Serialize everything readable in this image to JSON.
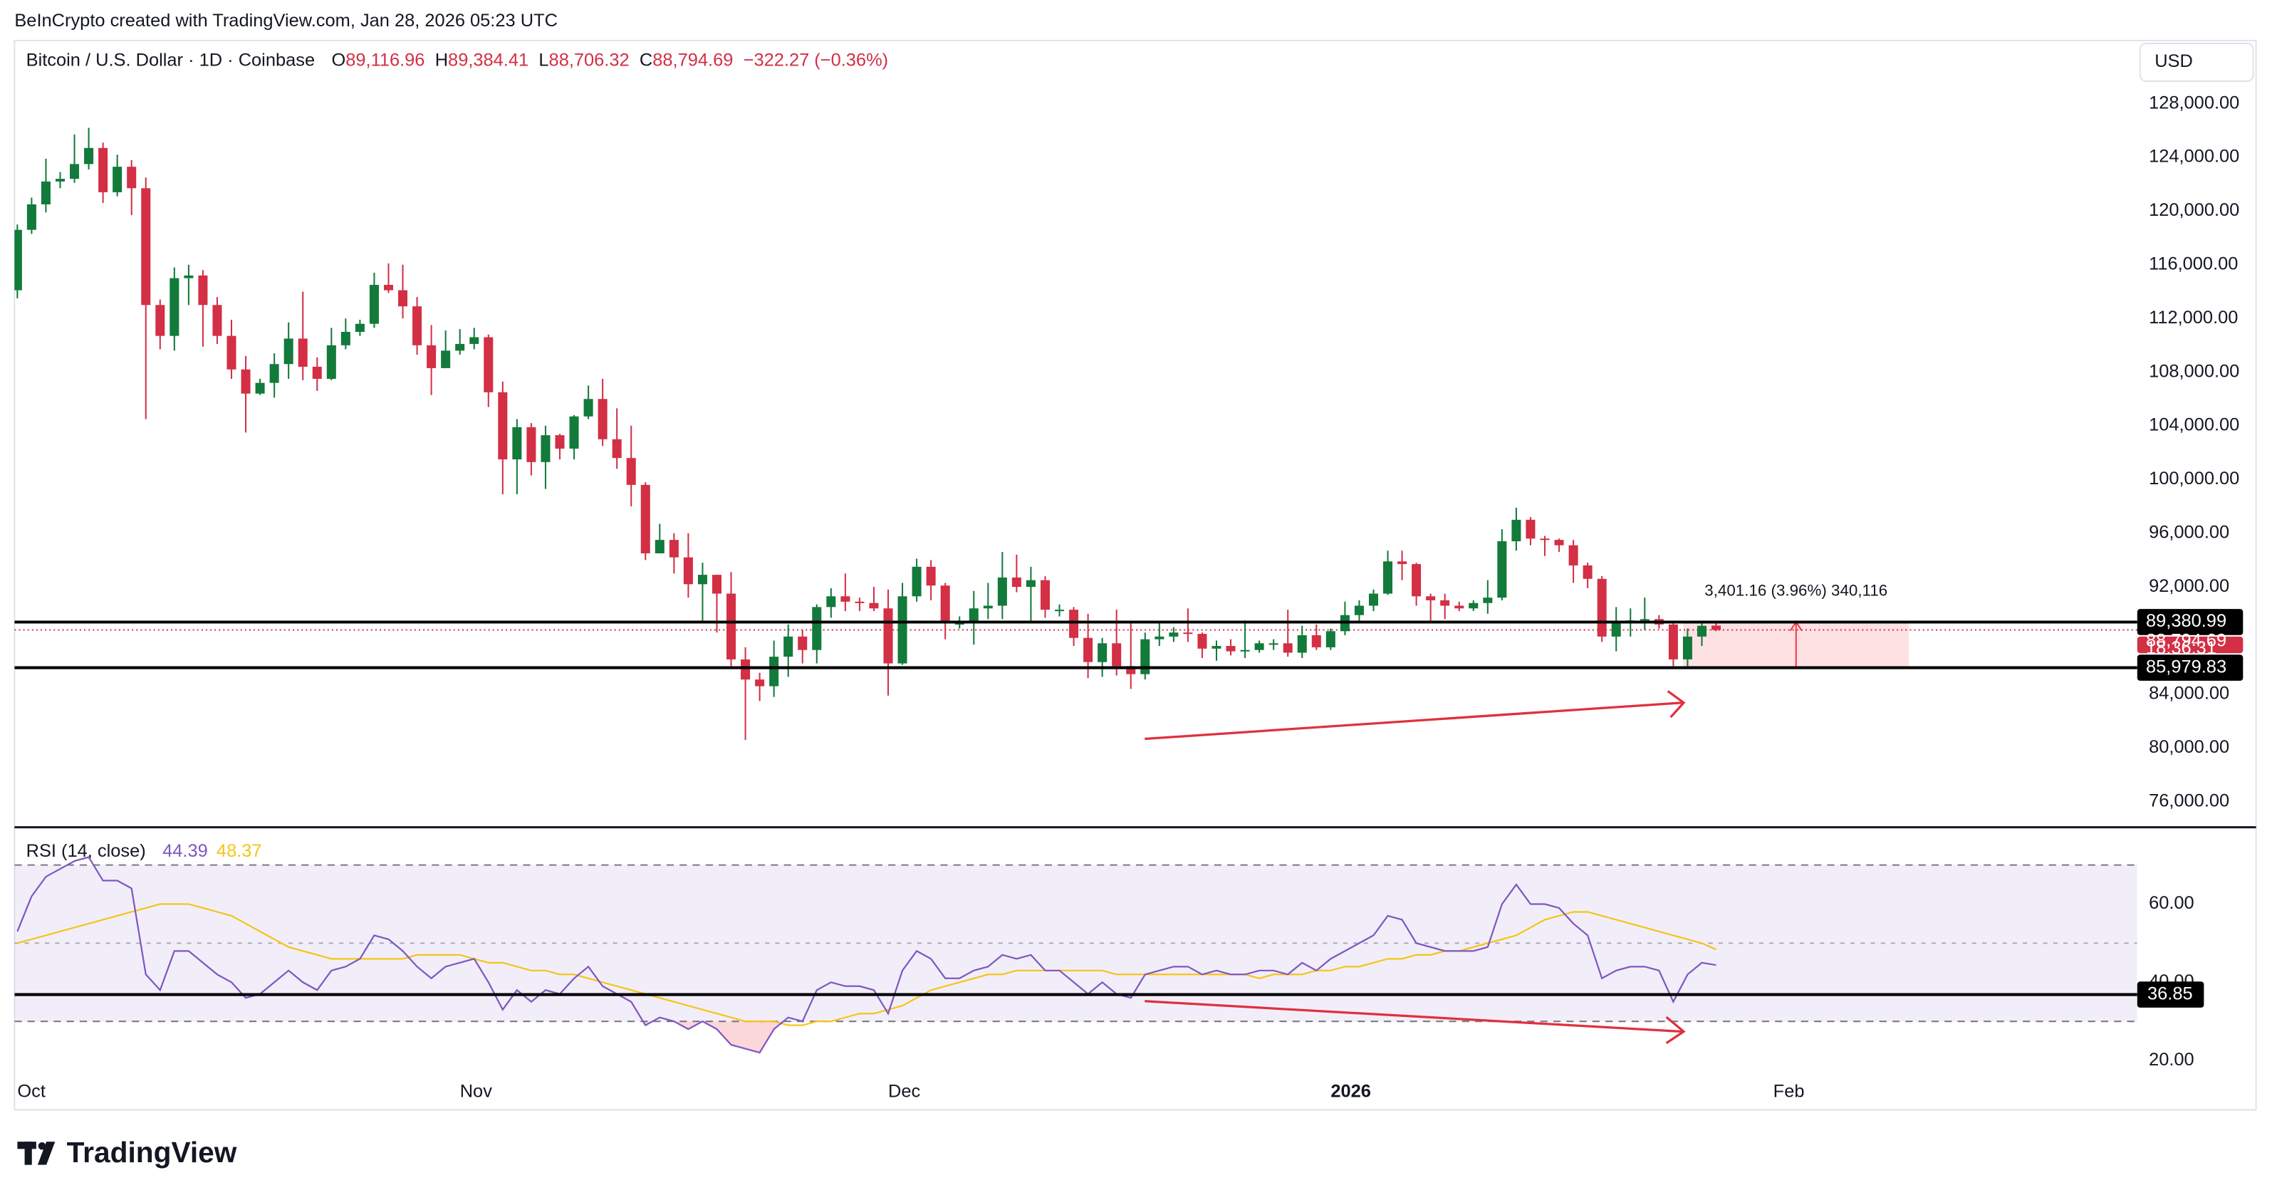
{
  "header": {
    "credit": "BeInCrypto created with TradingView.com, Jan 28, 2026 05:23 UTC"
  },
  "footer": {
    "brand": "TradingView"
  },
  "chart_data": {
    "type": "candlestick",
    "title": "Bitcoin / U.S. Dollar · 1D · Coinbase",
    "ohlc_legend": [
      {
        "key": "O",
        "value": "89,116.96"
      },
      {
        "key": "H",
        "value": "89,384.41"
      },
      {
        "key": "L",
        "value": "88,706.32"
      },
      {
        "key": "C",
        "value": "88,794.69"
      }
    ],
    "change_label": "−322.27 (−0.36%)",
    "currency": "USD",
    "up_color": "#127a3a",
    "down_color": "#d32f45",
    "categories": [
      null,
      null,
      null,
      null,
      null,
      null,
      null,
      null,
      null,
      null,
      null,
      null,
      null,
      null,
      null,
      null,
      null,
      null,
      null,
      null,
      null,
      null,
      null,
      null,
      null,
      null,
      null,
      null,
      null,
      null,
      null,
      null,
      null,
      null,
      null,
      null,
      null,
      null,
      null,
      null,
      null,
      null,
      null,
      null,
      null,
      null,
      null,
      null,
      null,
      null,
      null,
      null,
      null,
      null,
      null,
      null,
      null,
      null,
      null,
      null,
      null,
      null,
      null,
      null,
      null,
      null,
      null,
      null,
      null,
      null,
      null,
      null,
      null,
      null,
      null,
      null,
      null,
      null,
      null,
      null,
      null,
      null,
      null,
      null,
      null,
      null,
      null,
      null,
      null,
      null,
      null,
      null,
      null,
      null,
      null,
      null,
      null,
      null,
      null,
      null,
      null,
      null,
      null,
      null,
      null,
      null,
      null,
      null,
      null,
      null,
      null,
      null,
      null,
      null,
      null,
      null,
      null,
      null,
      null,
      null
    ],
    "open": [
      114100,
      118600,
      120500,
      122200,
      122400,
      123500,
      124700,
      121400,
      123300,
      121700,
      113000,
      110700,
      115000,
      115200,
      113000,
      110700,
      108200,
      106400,
      107200,
      108600,
      110500,
      108400,
      107500,
      110000,
      111000,
      111600,
      114500,
      114100,
      112900,
      110000,
      108300,
      109600,
      110100,
      110600,
      106500,
      101500,
      103900,
      101300,
      103300,
      102300,
      104700,
      106000,
      103000,
      101600,
      99600,
      94500,
      95500,
      94200,
      92200,
      92900,
      91500,
      86600,
      85100,
      84600,
      86800,
      88300,
      87300,
      90500,
      91300,
      90900,
      90800,
      90400,
      86300,
      91300,
      93500,
      92100,
      89300,
      89300,
      90400,
      90600,
      92700,
      92000,
      92500,
      90300,
      90300,
      88200,
      86400,
      87800,
      86100,
      85500,
      88100,
      88300,
      88600,
      88500,
      87400,
      87600,
      87200,
      87300,
      87800,
      87800,
      87100,
      88400,
      87500,
      88700,
      89900,
      90600,
      91500,
      93900,
      93700,
      91300,
      91000,
      90600,
      90400,
      90800,
      91200,
      95400,
      97000,
      95600,
      95500,
      95100,
      93600,
      92600,
      88300,
      89400,
      89500,
      89600,
      89200,
      86600,
      88300,
      89116.96
    ],
    "high": [
      119000,
      121000,
      123900,
      122900,
      125700,
      126200,
      125100,
      124200,
      123800,
      122500,
      113400,
      115800,
      116000,
      115600,
      113600,
      111900,
      109200,
      107500,
      109400,
      111700,
      114000,
      109100,
      111300,
      112000,
      111900,
      115400,
      116100,
      116000,
      113600,
      111500,
      111100,
      111200,
      111300,
      110800,
      107300,
      104500,
      104200,
      104000,
      103400,
      104800,
      107000,
      107500,
      105300,
      104000,
      99800,
      96700,
      96000,
      96000,
      93800,
      92900,
      93100,
      87500,
      85600,
      88000,
      89200,
      88800,
      90700,
      91900,
      93000,
      91200,
      92000,
      91800,
      92300,
      94100,
      94000,
      92300,
      89800,
      91700,
      92300,
      94600,
      94400,
      93500,
      92800,
      90700,
      90500,
      90000,
      88200,
      90300,
      89400,
      88600,
      89300,
      89000,
      90400,
      88600,
      88000,
      88100,
      89500,
      88000,
      88100,
      90300,
      89100,
      89200,
      88900,
      90900,
      91000,
      91800,
      94700,
      94700,
      93800,
      91500,
      91500,
      90900,
      91000,
      92500,
      96300,
      97900,
      97200,
      95800,
      95600,
      95500,
      93800,
      92800,
      90500,
      90400,
      91200,
      89900,
      89300,
      88900,
      89400,
      89384.41
    ],
    "low": [
      113500,
      118300,
      119900,
      121700,
      122100,
      123100,
      120600,
      121100,
      119700,
      104500,
      109700,
      109600,
      113000,
      109900,
      110100,
      107500,
      103500,
      106300,
      106100,
      107500,
      107400,
      106600,
      107400,
      109700,
      110700,
      111300,
      113900,
      112000,
      109300,
      106300,
      108300,
      109300,
      109700,
      105400,
      98900,
      98900,
      100300,
      99300,
      101500,
      101500,
      104500,
      102500,
      100800,
      98000,
      94000,
      94500,
      93000,
      91200,
      89300,
      88600,
      86100,
      80600,
      83500,
      83800,
      85300,
      86300,
      86300,
      89700,
      90200,
      90200,
      90200,
      83900,
      86200,
      90900,
      91000,
      88100,
      88900,
      87700,
      89600,
      89600,
      91600,
      89300,
      89700,
      89800,
      87600,
      85200,
      85300,
      85400,
      84400,
      85100,
      87600,
      87900,
      87900,
      86700,
      86500,
      86900,
      86700,
      87100,
      87300,
      86800,
      86700,
      87300,
      87300,
      88400,
      89300,
      90200,
      91400,
      92500,
      90600,
      89300,
      89600,
      90200,
      90200,
      90000,
      91000,
      94700,
      95100,
      94300,
      94600,
      92300,
      91900,
      87900,
      87200,
      88300,
      88800,
      88900,
      86100,
      86100,
      87600,
      88706.32
    ],
    "close": [
      118600,
      120500,
      122200,
      122400,
      123500,
      124700,
      121400,
      123300,
      121700,
      113000,
      110700,
      115000,
      115200,
      113000,
      110700,
      108200,
      106400,
      107200,
      108600,
      110500,
      108400,
      107500,
      110000,
      111000,
      111600,
      114500,
      114100,
      112900,
      110000,
      108300,
      109600,
      110100,
      110600,
      106500,
      101500,
      103900,
      101300,
      103300,
      102300,
      104700,
      106000,
      103000,
      101600,
      99600,
      94500,
      95500,
      94200,
      92200,
      92900,
      91500,
      86600,
      85100,
      84600,
      86800,
      88300,
      87300,
      90500,
      91300,
      90900,
      90800,
      90400,
      86300,
      91300,
      93500,
      92100,
      89300,
      89300,
      90400,
      90600,
      92700,
      92000,
      92500,
      90300,
      90300,
      88200,
      86400,
      87800,
      86100,
      85500,
      88100,
      88300,
      88600,
      88500,
      87400,
      87600,
      87200,
      87300,
      87800,
      87800,
      87100,
      88400,
      87500,
      88700,
      89900,
      90600,
      91500,
      93900,
      93700,
      91300,
      91000,
      90600,
      90400,
      90800,
      91200,
      95400,
      97000,
      95600,
      95500,
      95100,
      93600,
      92600,
      88300,
      89400,
      89500,
      89600,
      89200,
      86600,
      88300,
      89100,
      88794.69
    ],
    "xlim": [
      -0.2,
      148.5
    ],
    "xticks": [
      {
        "value": 0,
        "label": "Oct"
      },
      {
        "value": 31,
        "label": "Nov"
      },
      {
        "value": 61,
        "label": "Dec"
      },
      {
        "value": 92,
        "label": "2026"
      },
      {
        "value": 123,
        "label": "Feb"
      }
    ],
    "ylim": [
      74200,
      132700
    ],
    "yticks": [
      {
        "value": 76000,
        "label": "76,000.00"
      },
      {
        "value": 80000,
        "label": "80,000.00"
      },
      {
        "value": 84000,
        "label": "84,000.00"
      },
      {
        "value": 92000,
        "label": "92,000.00"
      },
      {
        "value": 96000,
        "label": "96,000.00"
      },
      {
        "value": 100000,
        "label": "100,000.00"
      },
      {
        "value": 104000,
        "label": "104,000.00"
      },
      {
        "value": 108000,
        "label": "108,000.00"
      },
      {
        "value": 112000,
        "label": "112,000.00"
      },
      {
        "value": 116000,
        "label": "116,000.00"
      },
      {
        "value": 120000,
        "label": "120,000.00"
      },
      {
        "value": 124000,
        "label": "124,000.00"
      },
      {
        "value": 128000,
        "label": "128,000.00"
      }
    ],
    "grid": false,
    "levels": [
      {
        "value": 89380.99,
        "label": "89,380.99"
      },
      {
        "value": 85979.83,
        "label": "85,979.83"
      }
    ],
    "price_label": {
      "value": 88794.69,
      "label": "88,794.69",
      "color": "#d32f45"
    },
    "countdown": "18:36:31",
    "measure": {
      "label": "3,401.16 (3.96%) 340,116",
      "color": "#f23645"
    },
    "rsi": {
      "title": "RSI (14, close)",
      "ylim": [
        15.9,
        78.9
      ],
      "yticks": [
        {
          "value": 20,
          "label": "20.00"
        },
        {
          "value": 40,
          "label": "40.00"
        },
        {
          "value": 60,
          "label": "60.00"
        }
      ],
      "band": [
        30,
        70
      ],
      "mid": 50,
      "band_color": "#7e57c2",
      "level": {
        "value": 36.85,
        "label": "36.85"
      },
      "series": [
        {
          "color": "#7e57c2",
          "value_label": "44.39",
          "values": [
            53,
            62,
            67,
            69,
            71,
            72,
            66,
            66,
            64,
            42,
            38,
            48,
            48,
            45,
            42,
            40,
            36,
            37,
            40,
            43,
            40,
            38,
            43,
            44,
            46,
            52,
            51,
            48,
            44,
            41,
            44,
            45,
            46,
            40,
            33,
            38,
            35,
            38,
            37,
            41,
            44,
            39,
            37,
            35,
            29,
            31,
            30,
            28,
            30,
            28,
            24,
            23,
            22,
            28,
            31,
            30,
            38,
            40,
            39,
            39,
            38,
            32,
            43,
            48,
            46,
            41,
            41,
            43,
            44,
            47,
            46,
            47,
            43,
            43,
            40,
            37,
            40,
            37,
            36,
            42,
            43,
            44,
            44,
            42,
            43,
            42,
            42,
            43,
            43,
            42,
            45,
            43,
            46,
            48,
            50,
            52,
            57,
            56,
            50,
            49,
            48,
            48,
            48,
            49,
            60,
            65,
            60,
            60,
            59,
            55,
            52,
            41,
            43,
            44,
            44,
            43,
            35,
            42,
            45,
            44.39
          ]
        },
        {
          "color": "#f5c518",
          "value_label": "48.37",
          "values": [
            50,
            51,
            52,
            53,
            54,
            55,
            56,
            57,
            58,
            59,
            60,
            60,
            60,
            59,
            58,
            57,
            55,
            53,
            51,
            49,
            48,
            47,
            46,
            46,
            46,
            46,
            46,
            46,
            47,
            47,
            47,
            47,
            46,
            45,
            45,
            44,
            43,
            43,
            42,
            42,
            41,
            40,
            39,
            38,
            37,
            36,
            35,
            34,
            33,
            32,
            31,
            30,
            30,
            30,
            29,
            29,
            30,
            30,
            31,
            32,
            32,
            33,
            34,
            36,
            38,
            39,
            40,
            41,
            42,
            42,
            43,
            43,
            43,
            43,
            43,
            43,
            43,
            42,
            42,
            42,
            42,
            42,
            42,
            42,
            42,
            42,
            42,
            41,
            42,
            42,
            42,
            43,
            43,
            44,
            44,
            45,
            46,
            46,
            47,
            47,
            48,
            48,
            49,
            50,
            51,
            52,
            54,
            56,
            57,
            58,
            58,
            57,
            56,
            55,
            54,
            53,
            52,
            51,
            50,
            48.37
          ]
        }
      ]
    }
  }
}
